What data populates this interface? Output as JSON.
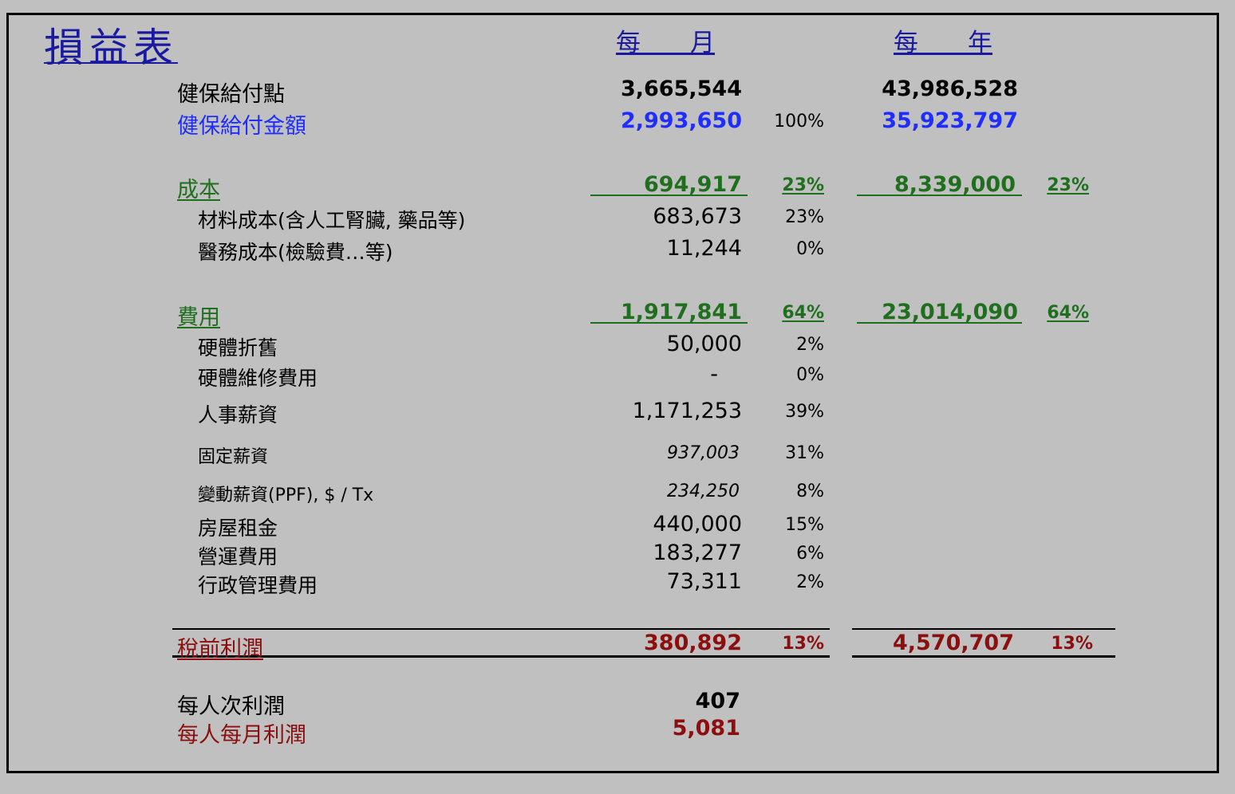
{
  "header": {
    "title": "損益表",
    "monthly": "每　　月",
    "yearly": "每　　年"
  },
  "rows": {
    "points": {
      "label": "健保給付點",
      "m": "3,665,544",
      "y": "43,986,528"
    },
    "amount": {
      "label": "健保給付金額",
      "m": "2,993,650",
      "mp": "100%",
      "y": "35,923,797"
    },
    "cost": {
      "label": "成本",
      "m": "694,917",
      "mp": "23%",
      "y": "8,339,000",
      "yp": "23%"
    },
    "material": {
      "label": "材料成本(含人工腎臟, 藥品等)",
      "m": "683,673",
      "mp": "23%"
    },
    "medical": {
      "label": "醫務成本(檢驗費…等)",
      "m": "11,244",
      "mp": "0%"
    },
    "expense": {
      "label": "費用",
      "m": "1,917,841",
      "mp": "64%",
      "y": "23,014,090",
      "yp": "64%"
    },
    "deprec": {
      "label": "硬體折舊",
      "m": "50,000",
      "mp": "2%"
    },
    "repair": {
      "label": "硬體維修費用",
      "m": "-",
      "mp": "0%"
    },
    "salary": {
      "label": "人事薪資",
      "m": "1,171,253",
      "mp": "39%"
    },
    "fixed": {
      "label": "固定薪資",
      "m": "937,003",
      "mp": "31%"
    },
    "variable": {
      "label": "變動薪資(PPF), $ / Tx",
      "m": "234,250",
      "mp": "8%"
    },
    "rent": {
      "label": "房屋租金",
      "m": "440,000",
      "mp": "15%"
    },
    "ops": {
      "label": "營運費用",
      "m": "183,277",
      "mp": "6%"
    },
    "admin": {
      "label": "行政管理費用",
      "m": "73,311",
      "mp": "2%"
    },
    "pretax": {
      "label": "稅前利潤",
      "m": "380,892",
      "mp": "13%",
      "y": "4,570,707",
      "yp": "13%"
    },
    "perTx": {
      "label": "每人次利潤",
      "m": "407"
    },
    "perMonth": {
      "label": "每人每月利潤",
      "m": "5,081"
    }
  },
  "colors": {
    "blue": "#1f2dff",
    "green": "#1f6f1f",
    "darkred": "#8b0f0f",
    "title": "#1a1aa0"
  }
}
